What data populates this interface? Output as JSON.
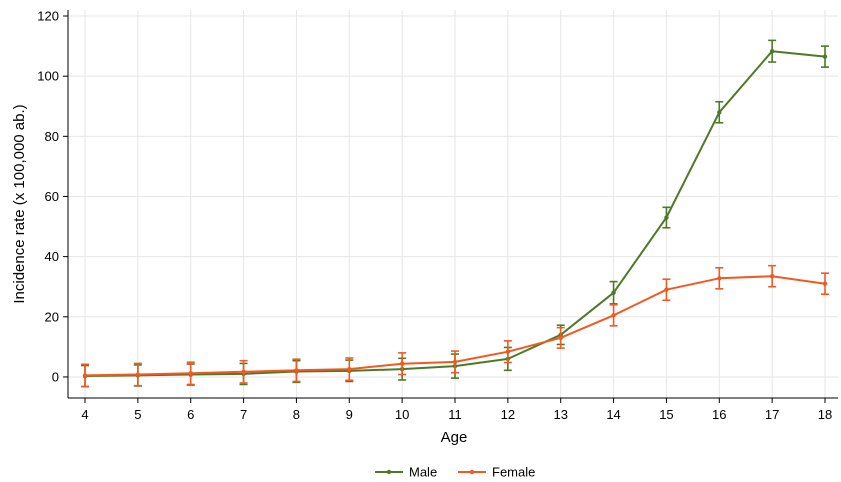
{
  "chart_data": {
    "type": "line",
    "title": "",
    "xlabel": "Age",
    "ylabel": "Incidence rate (x 100,000 ab.)",
    "x": [
      4,
      5,
      6,
      7,
      8,
      9,
      10,
      11,
      12,
      13,
      14,
      15,
      16,
      17,
      18
    ],
    "xlim": [
      4,
      18
    ],
    "ylim": [
      -7,
      122
    ],
    "yticks": [
      0,
      20,
      40,
      60,
      80,
      100,
      120
    ],
    "grid": true,
    "legend": "bottom",
    "series": [
      {
        "name": "Male",
        "color": "#4e7a27",
        "values": [
          0.3,
          0.5,
          0.8,
          1.0,
          1.8,
          2.0,
          2.6,
          3.6,
          6.0,
          14.0,
          28.0,
          53.0,
          88.0,
          108.3,
          106.5
        ],
        "lower": [
          -3.2,
          -3.0,
          -2.7,
          -2.5,
          -1.8,
          -1.5,
          -1.0,
          -0.4,
          2.2,
          10.8,
          24.3,
          49.6,
          84.5,
          104.7,
          103.0
        ],
        "upper": [
          3.8,
          4.0,
          4.3,
          4.5,
          5.4,
          5.6,
          6.2,
          7.6,
          9.8,
          17.2,
          31.7,
          56.4,
          91.5,
          111.9,
          110.0
        ]
      },
      {
        "name": "Female",
        "color": "#f05a22",
        "values": [
          0.5,
          0.8,
          1.2,
          1.7,
          2.2,
          2.6,
          4.4,
          5.0,
          8.4,
          13.0,
          20.5,
          29.0,
          32.8,
          33.5,
          31.0
        ],
        "lower": [
          -3.2,
          -2.9,
          -2.5,
          -2.0,
          -1.5,
          -1.1,
          0.8,
          1.4,
          4.8,
          9.6,
          17.0,
          25.5,
          29.3,
          30.0,
          27.5
        ],
        "upper": [
          4.2,
          4.5,
          4.9,
          5.4,
          5.9,
          6.3,
          8.0,
          8.6,
          12.0,
          16.4,
          24.0,
          32.5,
          36.3,
          37.0,
          34.5
        ]
      }
    ]
  }
}
